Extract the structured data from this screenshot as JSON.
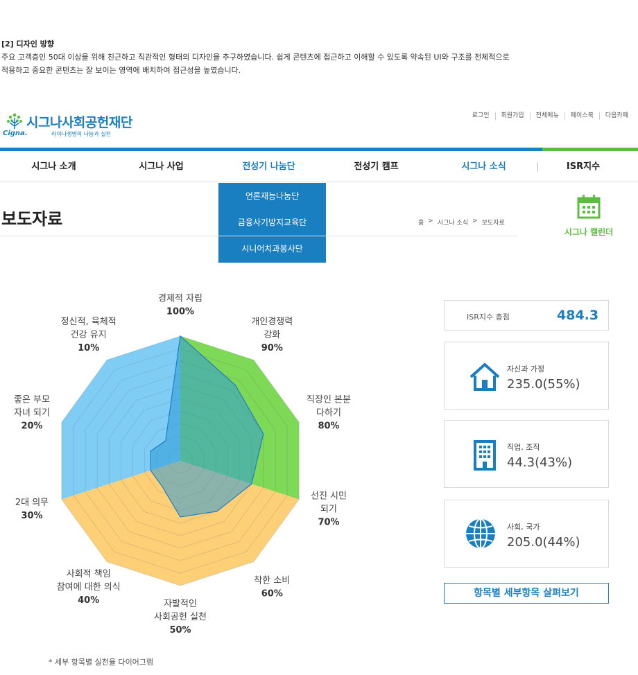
{
  "intro": {
    "title": "[2] 디자인 방향",
    "line1": "주요 고객층인 50대 이상을 위해 친근하고 직관적인 형태의 디자인을 추구하였습니다. 쉽게 콘텐츠에 접근하고 이해할 수 있도록 약속된 UI와 구조를 전체적으로",
    "line2": "적용하고 중요한 콘텐츠는 잘 보이는 영역에 배치하여 접근성을 높였습니다."
  },
  "header": {
    "logo_name": "시그나사회공헌재단",
    "logo_brand": "Cigna.",
    "logo_tagline": "라이나생명의 나눔과 실천",
    "util_nav": [
      "로그인",
      "회원가입",
      "전체메뉴",
      "페이스북",
      "다음카페"
    ]
  },
  "gnb": {
    "items": [
      "시그나 소개",
      "시그나 사업",
      "전성기 나눔단",
      "전성기 캠프",
      "시그나 소식"
    ],
    "isr": "ISR지수"
  },
  "dropdown": {
    "items": [
      "언론재능나눔단",
      "금융사기방지교육단",
      "시니어치과봉사단"
    ]
  },
  "page": {
    "title": "보도자료",
    "breadcrumb": [
      "홈",
      ">",
      "시그나 소식",
      ">",
      "보도자료"
    ]
  },
  "calendar": {
    "label": "시그나 캘린더"
  },
  "chart_data": {
    "type": "radar",
    "axes": [
      {
        "label_lines": [
          "경제적 자립"
        ],
        "pct": "100%",
        "value": 100
      },
      {
        "label_lines": [
          "개인경쟁력",
          "강화"
        ],
        "pct": "90%",
        "value": 90
      },
      {
        "label_lines": [
          "직장인 본분",
          "다하기"
        ],
        "pct": "80%",
        "value": 80
      },
      {
        "label_lines": [
          "선진 시민",
          "되기"
        ],
        "pct": "70%",
        "value": 70
      },
      {
        "label_lines": [
          "착한 소비"
        ],
        "pct": "60%",
        "value": 60
      },
      {
        "label_lines": [
          "자발적인",
          "사회공헌 실천"
        ],
        "pct": "50%",
        "value": 50
      },
      {
        "label_lines": [
          "사회적 책임",
          "참여에 대한 의식"
        ],
        "pct": "40%",
        "value": 40
      },
      {
        "label_lines": [
          "2대 의무"
        ],
        "pct": "30%",
        "value": 30
      },
      {
        "label_lines": [
          "좋은 부모",
          "자녀 되기"
        ],
        "pct": "20%",
        "value": 20
      },
      {
        "label_lines": [
          "정신적, 육체적",
          "건강 유지"
        ],
        "pct": "10%",
        "value": 10
      }
    ],
    "sectors": [
      {
        "axes": [
          7,
          8,
          9,
          0
        ],
        "color": "#7fcdf5"
      },
      {
        "axes": [
          0,
          1,
          2,
          3
        ],
        "color": "#7ed957"
      },
      {
        "axes": [
          3,
          4,
          5,
          6,
          7
        ],
        "color": "#fdd078"
      }
    ],
    "achieved_values": [
      100,
      75,
      70,
      60,
      50,
      45,
      25,
      25,
      25,
      20
    ],
    "achieved_color": "#2e9bd6",
    "grid_levels": 10,
    "range": [
      0,
      100
    ]
  },
  "scores": {
    "total_label": "ISR지수 총점",
    "total_value": "484.3",
    "categories": [
      {
        "label": "자신과 가정",
        "value": "235.0(55%)",
        "icon": "house-icon"
      },
      {
        "label": "직업, 조직",
        "value": "44.3(43%)",
        "icon": "building-icon"
      },
      {
        "label": "사회, 국가",
        "value": "205.0(44%)",
        "icon": "globe-icon"
      }
    ],
    "detail_button": "항목별 세부항목 살펴보기"
  },
  "footnote": "* 세부 항목별 실천율 다이어그램"
}
